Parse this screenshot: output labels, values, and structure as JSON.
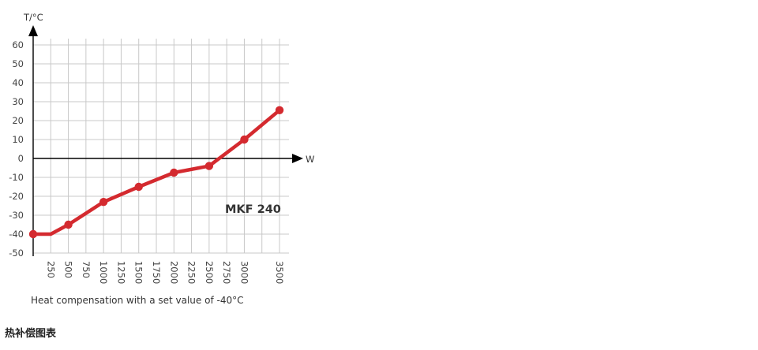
{
  "chart_data": {
    "type": "line",
    "title": "",
    "xlabel": "W",
    "ylabel": "T/°C",
    "annotation": "MKF 240",
    "xlim": [
      0,
      3500
    ],
    "ylim": [
      -50,
      60
    ],
    "x_ticks": [
      250,
      500,
      750,
      1000,
      1250,
      1500,
      1750,
      2000,
      2250,
      2500,
      2750,
      3000,
      3500
    ],
    "y_ticks": [
      60,
      50,
      40,
      30,
      20,
      10,
      0,
      -10,
      -20,
      -30,
      -40,
      -50
    ],
    "grid": true,
    "line_color": "#d42a2f",
    "series": [
      {
        "x": [
          0,
          250,
          500,
          1000,
          1500,
          2000,
          2500,
          3000,
          3500
        ],
        "y": [
          -40,
          -40,
          -35,
          -23,
          -15,
          -7.5,
          -4,
          10,
          25.5
        ],
        "markers": [
          true,
          false,
          true,
          true,
          true,
          true,
          true,
          true,
          true
        ]
      }
    ]
  },
  "caption": "Heat compensation with a set value of -40°C",
  "footer": "热补偿图表"
}
